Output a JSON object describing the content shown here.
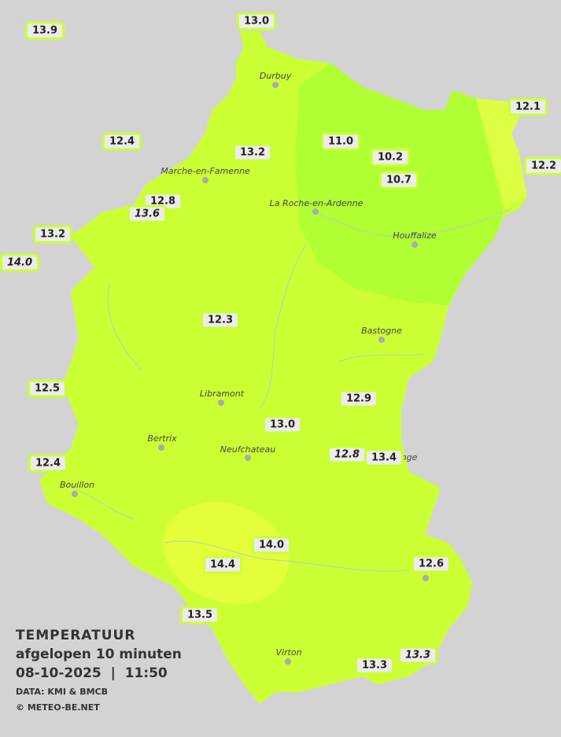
{
  "legend": {
    "title": "TEMPERATUUR",
    "subtitle": "afgelopen 10 minuten",
    "datetime": "08-10-2025  |  11:50",
    "data_source": "DATA: KMI & BMCB",
    "copyright": "© METEO-BE.NET"
  },
  "colors": {
    "background": "#d3d3d3",
    "zone_12_13": "#ccff33",
    "zone_11_12": "#b0ff33",
    "zone_13_14": "#e0ff3a",
    "label_border": "#ccff33"
  },
  "cities": [
    {
      "name": "Durbuy"
    },
    {
      "name": "Marche-en-Famenne"
    },
    {
      "name": "La Roche-en-Ardenne"
    },
    {
      "name": "Houffalize"
    },
    {
      "name": "Bastogne"
    },
    {
      "name": "Libramont"
    },
    {
      "name": "Bertrix"
    },
    {
      "name": "Neufchateau"
    },
    {
      "name": "nge"
    },
    {
      "name": "Bouillon"
    },
    {
      "name": "Virton"
    }
  ],
  "stations": [
    {
      "value": "13.9",
      "italic": false
    },
    {
      "value": "13.0",
      "italic": false
    },
    {
      "value": "12.1",
      "italic": false
    },
    {
      "value": "12.4",
      "italic": false
    },
    {
      "value": "11.0",
      "italic": false
    },
    {
      "value": "13.2",
      "italic": false
    },
    {
      "value": "10.2",
      "italic": false
    },
    {
      "value": "12.2",
      "italic": false
    },
    {
      "value": "10.7",
      "italic": false
    },
    {
      "value": "12.8",
      "italic": false
    },
    {
      "value": "13.6",
      "italic": true
    },
    {
      "value": "13.2",
      "italic": false
    },
    {
      "value": "14.0",
      "italic": true
    },
    {
      "value": "12.3",
      "italic": false
    },
    {
      "value": "12.5",
      "italic": false
    },
    {
      "value": "12.9",
      "italic": false
    },
    {
      "value": "13.0",
      "italic": false
    },
    {
      "value": "12.8",
      "italic": true
    },
    {
      "value": "13.4",
      "italic": false
    },
    {
      "value": "12.4",
      "italic": false
    },
    {
      "value": "14.0",
      "italic": false
    },
    {
      "value": "14.4",
      "italic": false
    },
    {
      "value": "12.6",
      "italic": false
    },
    {
      "value": "13.5",
      "italic": false
    },
    {
      "value": "13.3",
      "italic": false
    },
    {
      "value": "13.3",
      "italic": true
    }
  ]
}
